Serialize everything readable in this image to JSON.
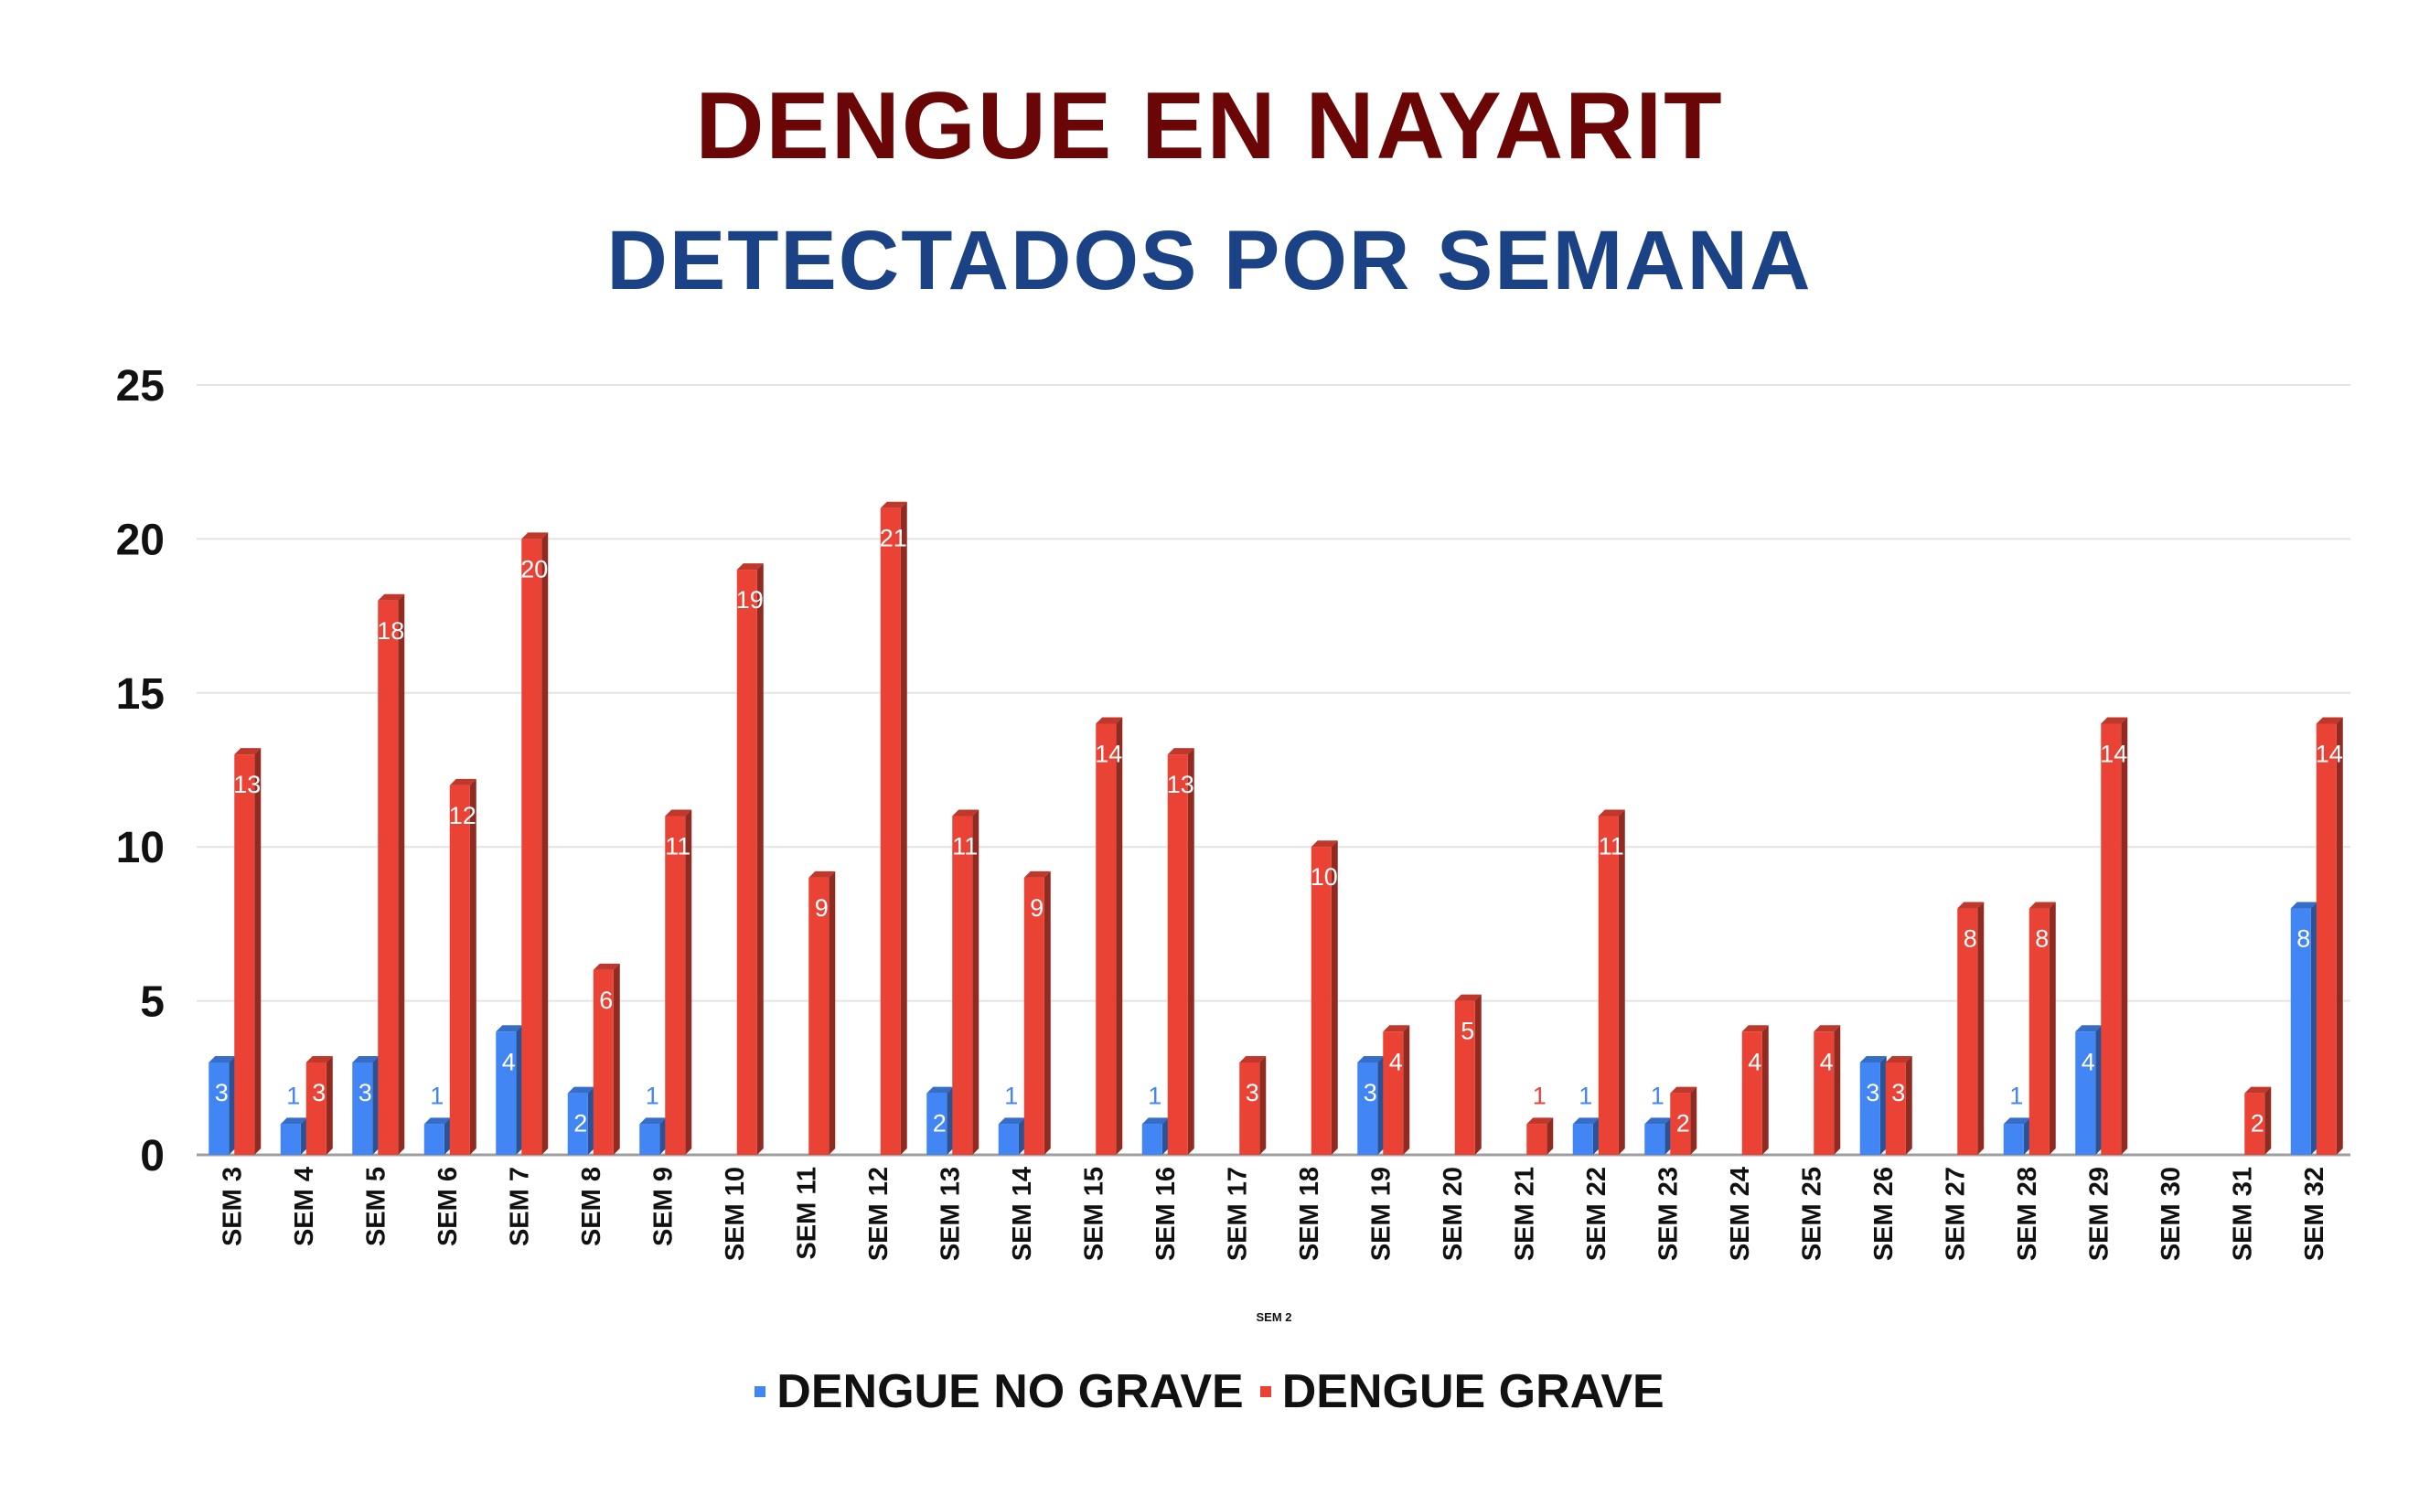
{
  "title": "DENGUE EN NAYARIT",
  "subtitle": "DETECTADOS POR SEMANA",
  "colors": {
    "title": "#6b0606",
    "subtitle": "#1c4286",
    "no_grave": "#4285f4",
    "grave": "#ea4335"
  },
  "chart_data": {
    "type": "bar",
    "xlabel": "SEM 2",
    "ylabel": "",
    "ylim": [
      0,
      25
    ],
    "yticks": [
      0,
      5,
      10,
      15,
      20,
      25
    ],
    "grid": true,
    "legend_position": "bottom",
    "categories": [
      "SEM 3",
      "SEM 4",
      "SEM 5",
      "SEM 6",
      "SEM 7",
      "SEM 8",
      "SEM 9",
      "SEM 10",
      "SEM 11",
      "SEM 12",
      "SEM 13",
      "SEM 14",
      "SEM 15",
      "SEM 16",
      "SEM 17",
      "SEM 18",
      "SEM 19",
      "SEM 20",
      "SEM 21",
      "SEM 22",
      "SEM 23",
      "SEM 24",
      "SEM 25",
      "SEM 26",
      "SEM 27",
      "SEM 28",
      "SEM 29",
      "SEM 30",
      "SEM 31",
      "SEM 32"
    ],
    "series": [
      {
        "name": "DENGUE NO GRAVE",
        "color": "#4285f4",
        "values": [
          3,
          1,
          3,
          1,
          4,
          2,
          1,
          null,
          null,
          null,
          2,
          1,
          null,
          1,
          null,
          null,
          3,
          null,
          null,
          1,
          1,
          null,
          null,
          3,
          null,
          1,
          4,
          null,
          null,
          8
        ]
      },
      {
        "name": "DENGUE GRAVE",
        "color": "#ea4335",
        "values": [
          13,
          3,
          18,
          12,
          20,
          6,
          11,
          19,
          9,
          21,
          11,
          9,
          14,
          13,
          3,
          10,
          4,
          5,
          1,
          11,
          2,
          4,
          4,
          3,
          8,
          8,
          14,
          null,
          2,
          14
        ]
      }
    ]
  }
}
